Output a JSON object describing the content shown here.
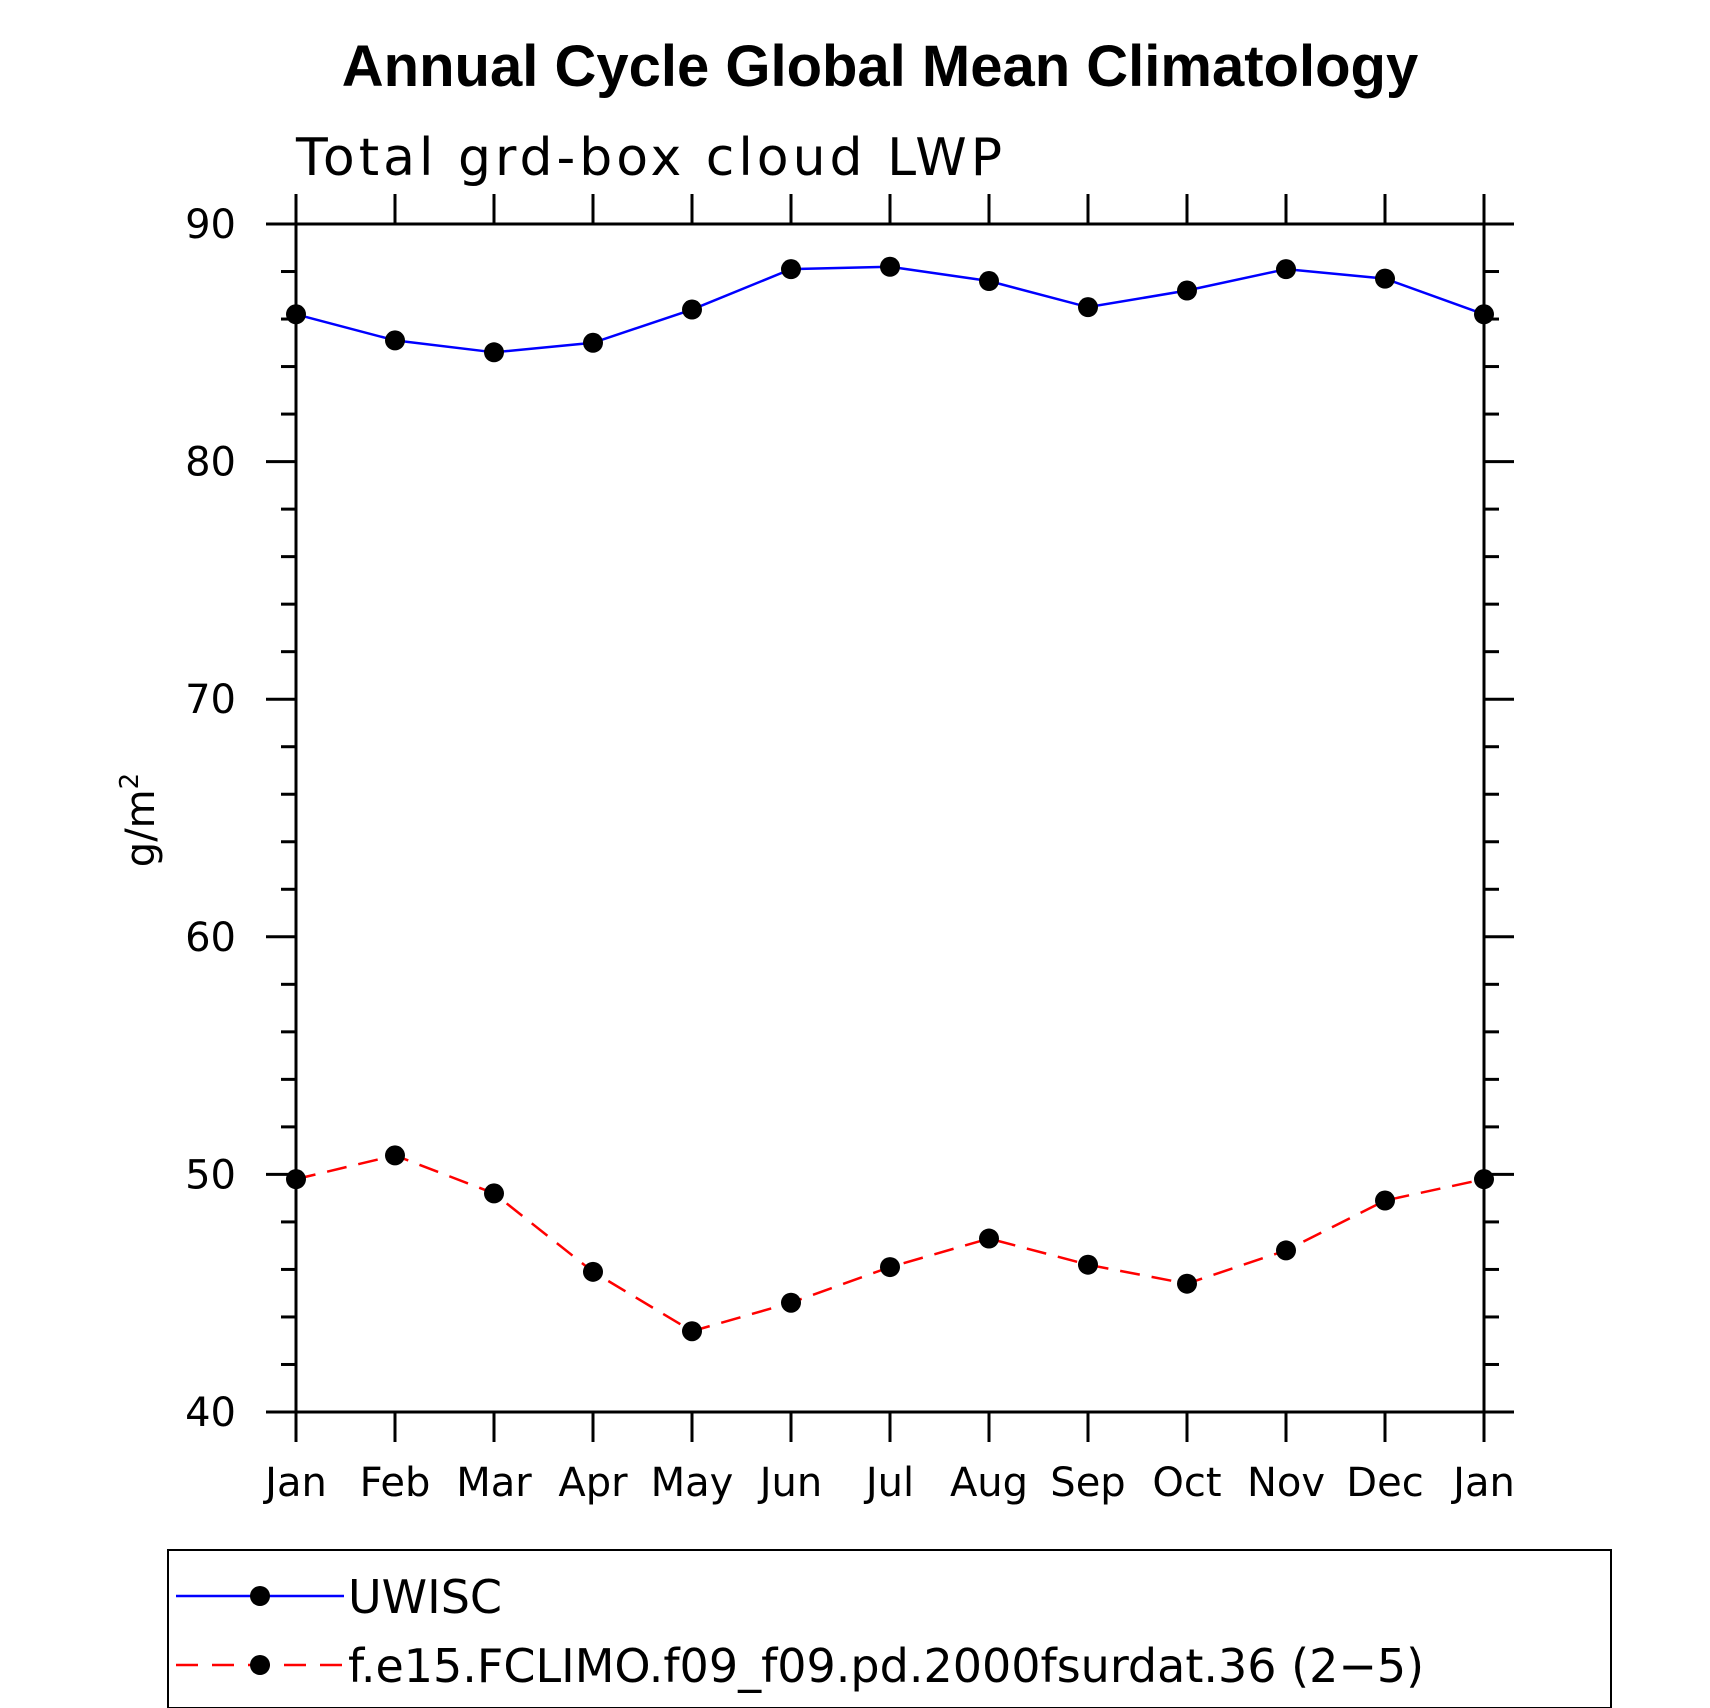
{
  "chart_data": {
    "type": "line",
    "title": "Annual Cycle Global Mean Climatology",
    "subtitle": "Total grd-box cloud LWP",
    "ylabel": "g/m",
    "ylabel_superscript": "2",
    "xlabel": "",
    "categories": [
      "Jan",
      "Feb",
      "Mar",
      "Apr",
      "May",
      "Jun",
      "Jul",
      "Aug",
      "Sep",
      "Oct",
      "Nov",
      "Dec",
      "Jan"
    ],
    "ylim": [
      40,
      90
    ],
    "yticks": [
      40,
      50,
      60,
      70,
      80,
      90
    ],
    "y_minor_step": 2,
    "series": [
      {
        "name": "UWISC",
        "color": "#0000ff",
        "dash": "solid",
        "values": [
          86.2,
          85.1,
          84.6,
          85.0,
          86.4,
          88.1,
          88.2,
          87.6,
          86.5,
          87.2,
          88.1,
          87.7,
          86.2
        ]
      },
      {
        "name": "f.e15.FCLIMO.f09_f09.pd.2000fsurdat.36 (2−5)",
        "color": "#ff0000",
        "dash": "dashed",
        "values": [
          49.8,
          50.8,
          49.2,
          45.9,
          43.4,
          44.6,
          46.1,
          47.3,
          46.2,
          45.4,
          46.8,
          48.9,
          49.8
        ]
      }
    ],
    "legend_position": "bottom"
  }
}
